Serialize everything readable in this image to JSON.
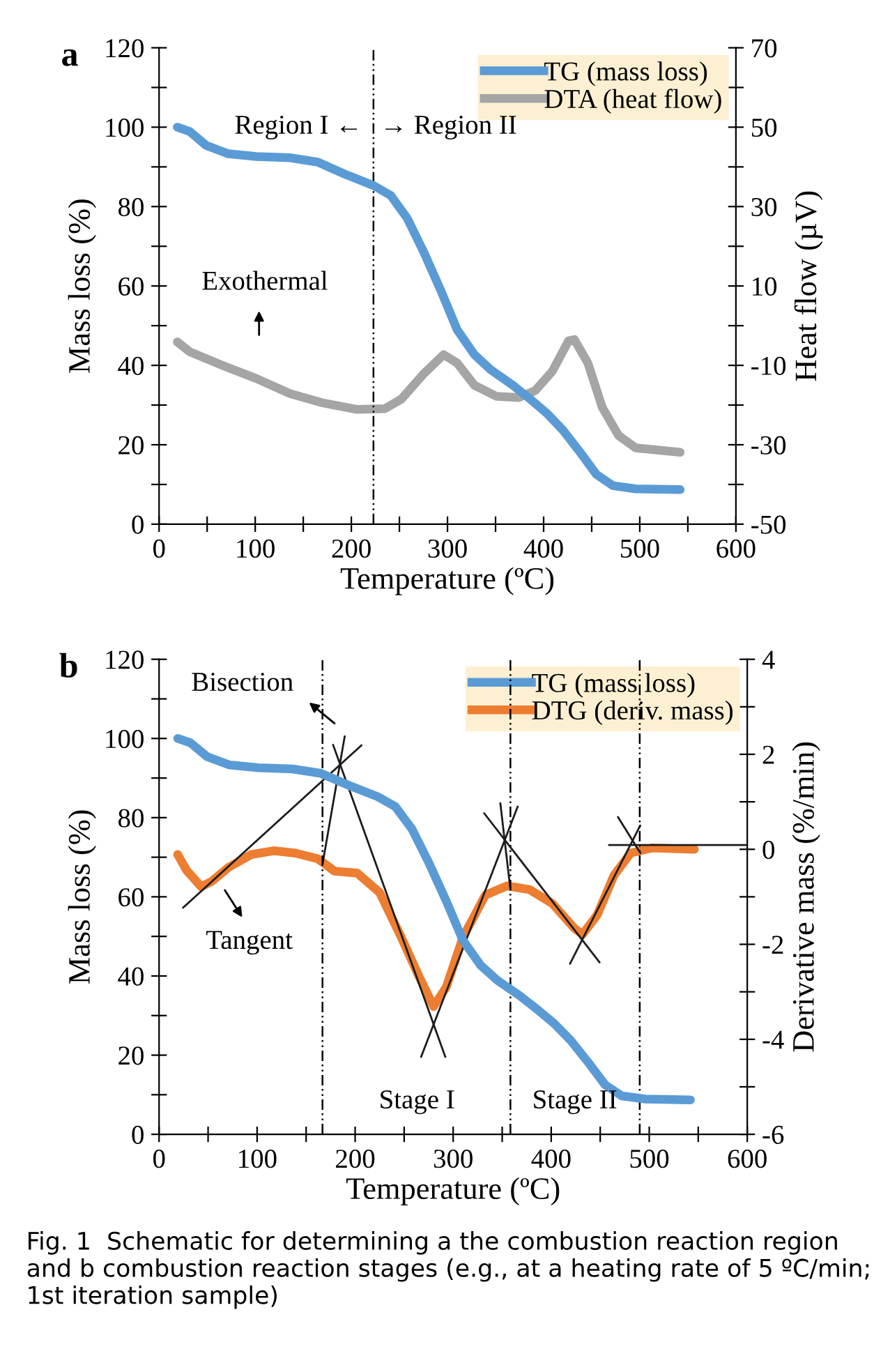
{
  "chart_data": [
    {
      "type": "line",
      "title": "a",
      "xlabel": "Temperature (ºC)",
      "ylabel": "Mass loss (%)",
      "y2label": "Heat flow (µV)",
      "xlim": [
        0,
        600
      ],
      "xticks": [
        0,
        {
          "value": 50,
          "label": null
        },
        100,
        {
          "value": 150,
          "label": null
        },
        200,
        {
          "value": 250,
          "label": null
        },
        300,
        {
          "value": 350,
          "label": null
        },
        400,
        {
          "value": 450,
          "label": null
        },
        500,
        {
          "value": 550,
          "label": null
        },
        600
      ],
      "ylim": [
        0,
        120
      ],
      "yticks": [
        0,
        {
          "value": 10,
          "label": null
        },
        20,
        {
          "value": 30,
          "label": null
        },
        40,
        {
          "value": 50,
          "label": null
        },
        60,
        {
          "value": 70,
          "label": null
        },
        80,
        {
          "value": 90,
          "label": null
        },
        100,
        {
          "value": 110,
          "label": null
        },
        120
      ],
      "y2lim": [
        -50,
        70
      ],
      "y2ticks": [
        -50,
        {
          "value": -40,
          "label": null
        },
        -30,
        {
          "value": -20,
          "label": null
        },
        -10,
        {
          "value": 0,
          "label": null
        },
        10,
        {
          "value": 20,
          "label": null
        },
        30,
        {
          "value": 40,
          "label": null
        },
        50,
        {
          "value": 60,
          "label": null
        },
        70
      ],
      "grid": false,
      "legend": "top right",
      "series": [
        {
          "name": "TG (mass loss)",
          "color": "#5b9bd5",
          "x": [
            19,
            32,
            49,
            72,
            101,
            136,
            165,
            194,
            223,
            241,
            258,
            275,
            293,
            310,
            328,
            345,
            368,
            386,
            403,
            420,
            438,
            455,
            472,
            496,
            542
          ],
          "values": [
            100,
            98.9,
            95.4,
            93.3,
            92.6,
            92.3,
            91.2,
            88.1,
            85.3,
            82.8,
            77.1,
            68.7,
            58.9,
            49,
            42.7,
            38.9,
            35,
            31.5,
            28,
            23.7,
            18.1,
            12.5,
            9.7,
            8.9,
            8.7
          ]
        },
        {
          "name": "DTA (heat flow)",
          "color": "#a5a5a5",
          "axis": "y2",
          "x": [
            19,
            32,
            67,
            101,
            136,
            171,
            206,
            235,
            252,
            275,
            296,
            310,
            328,
            351,
            374,
            391,
            409,
            426,
            432,
            446,
            461,
            478,
            496,
            542
          ],
          "values": [
            -4.1,
            -6.6,
            -10.1,
            -13.3,
            -17.1,
            -19.5,
            -21.1,
            -20.9,
            -18.5,
            -12.2,
            -7.3,
            -9.4,
            -15,
            -17.8,
            -18.1,
            -16.4,
            -11.5,
            -3.8,
            -3.5,
            -9.4,
            -20.6,
            -27.7,
            -30.8,
            -31.9
          ]
        }
      ],
      "ref_lines": [
        {
          "axis": "x",
          "value": 223,
          "color": "#000000",
          "line_style": "dashdot"
        }
      ],
      "annotations": [
        "Region I ←",
        "→ Region II",
        "Exothermal"
      ]
    },
    {
      "type": "line",
      "title": "b",
      "xlabel": "Temperature (ºC)",
      "ylabel": "Mass loss (%)",
      "y2label": "Derivative mass (%/min)",
      "xlim": [
        0,
        600
      ],
      "xticks": [
        0,
        {
          "value": 50,
          "label": null
        },
        100,
        {
          "value": 150,
          "label": null
        },
        200,
        {
          "value": 250,
          "label": null
        },
        300,
        {
          "value": 350,
          "label": null
        },
        400,
        {
          "value": 450,
          "label": null
        },
        500,
        {
          "value": 550,
          "label": null
        },
        600
      ],
      "ylim": [
        0,
        120
      ],
      "yticks": [
        0,
        {
          "value": 10,
          "label": null
        },
        20,
        {
          "value": 30,
          "label": null
        },
        40,
        {
          "value": 50,
          "label": null
        },
        60,
        {
          "value": 70,
          "label": null
        },
        80,
        {
          "value": 90,
          "label": null
        },
        100,
        {
          "value": 110,
          "label": null
        },
        120
      ],
      "y2lim": [
        -6,
        4
      ],
      "y2ticks": [
        -6,
        {
          "value": -5,
          "label": null
        },
        -4,
        {
          "value": -3,
          "label": null
        },
        -2,
        {
          "value": -1,
          "label": null
        },
        0,
        {
          "value": 1,
          "label": null
        },
        2,
        {
          "value": 3,
          "label": null
        },
        4
      ],
      "grid": false,
      "legend": "top right",
      "series": [
        {
          "name": "TG (mass loss)",
          "color": "#5b9bd5",
          "x": [
            19,
            32,
            49,
            72,
            101,
            136,
            165,
            194,
            223,
            241,
            258,
            275,
            293,
            310,
            328,
            345,
            368,
            386,
            403,
            420,
            438,
            455,
            472,
            496,
            542
          ],
          "values": [
            100,
            98.9,
            95.4,
            93.3,
            92.6,
            92.3,
            91.2,
            88.1,
            85.3,
            82.8,
            77.1,
            68.7,
            58.9,
            49,
            42.7,
            38.9,
            35,
            31.5,
            28,
            23.7,
            18.1,
            12.5,
            9.7,
            8.9,
            8.7
          ]
        },
        {
          "name": "DTG (deriv. mass)",
          "color": "#ed7d31",
          "axis": "y2",
          "x": [
            19,
            28,
            43,
            54,
            71,
            94,
            117,
            139,
            162,
            179,
            202,
            225,
            247,
            265,
            280,
            293,
            310,
            333,
            355,
            378,
            401,
            424,
            432,
            447,
            464,
            481,
            503,
            546
          ],
          "values": [
            -0.11,
            -0.44,
            -0.79,
            -0.67,
            -0.38,
            -0.11,
            -0.03,
            -0.08,
            -0.2,
            -0.46,
            -0.5,
            -0.91,
            -1.85,
            -2.67,
            -3.31,
            -2.9,
            -1.85,
            -0.96,
            -0.77,
            -0.85,
            -1.14,
            -1.67,
            -1.79,
            -1.38,
            -0.55,
            -0.08,
            0.03,
            0.0
          ]
        },
        {
          "color": "#1c1c1c",
          "axis": "y2",
          "x": [
            24.5,
            206.5
          ],
          "values": [
            -1.23,
            2.19
          ]
        },
        {
          "color": "#1c1c1c",
          "axis": "y2",
          "x": [
            166.7,
            189.4
          ],
          "values": [
            -0.32,
            2.38
          ]
        },
        {
          "color": "#1c1c1c",
          "axis": "y2",
          "x": [
            177.5,
            292
          ],
          "values": [
            2.2,
            -4.37
          ]
        },
        {
          "color": "#1c1c1c",
          "axis": "y2",
          "x": [
            267.3,
            365.8
          ],
          "values": [
            -4.37,
            0.9
          ]
        },
        {
          "color": "#1c1c1c",
          "axis": "y2",
          "x": [
            331.6,
            449.3
          ],
          "values": [
            0.76,
            -2.38
          ]
        },
        {
          "color": "#1c1c1c",
          "axis": "y2",
          "x": [
            348.1,
            358.4
          ],
          "values": [
            0.97,
            -0.85
          ]
        },
        {
          "color": "#1c1c1c",
          "axis": "y2",
          "x": [
            419.2,
            490.8
          ],
          "values": [
            -2.41,
            0.5
          ]
        },
        {
          "color": "#1c1c1c",
          "axis": "y2",
          "x": [
            468.1,
            491
          ],
          "values": [
            0.68,
            -0.08
          ]
        },
        {
          "color": "#1c1c1c",
          "axis": "y2",
          "x": [
            459,
            600
          ],
          "values": [
            0.09,
            0.09
          ]
        }
      ],
      "ref_lines": [
        {
          "axis": "x",
          "value": 166.7,
          "color": "#000000",
          "line_style": "dashdot"
        },
        {
          "axis": "x",
          "value": 358.4,
          "color": "#000000",
          "line_style": "dashdot"
        },
        {
          "axis": "x",
          "value": 490.3,
          "color": "#000000",
          "line_style": "dashdot"
        }
      ],
      "annotations": [
        "Bisection",
        "Tangent",
        "Stage I",
        "Stage II",
        "Fig. 1  Schematic for determining a the combustion reaction region and b combustion reaction stages (e.g., at a heating rate of 5 ºC/min; 1st iteration sample)"
      ]
    }
  ]
}
